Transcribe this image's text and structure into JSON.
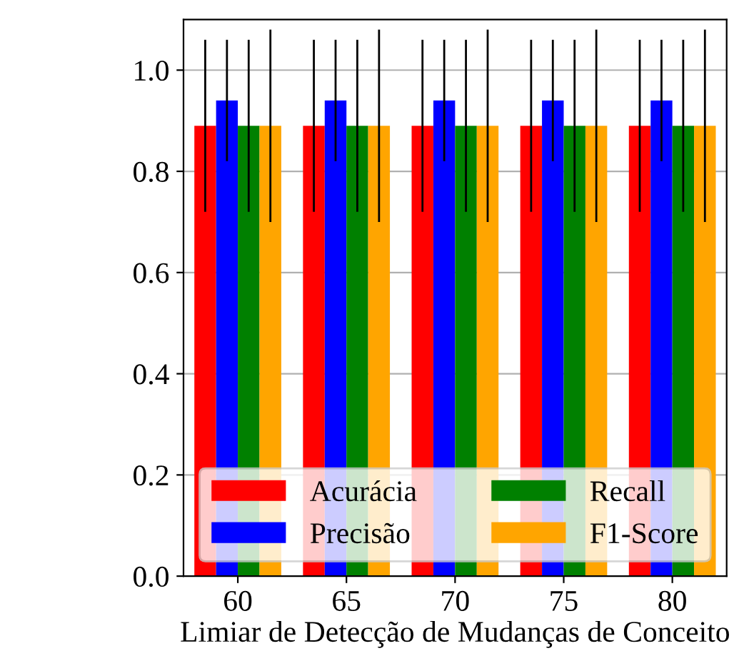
{
  "chart_data": {
    "type": "bar",
    "xlabel": "Limiar de Detecção de Mudanças de Conceito",
    "categories": [
      "60",
      "65",
      "70",
      "75",
      "80"
    ],
    "series": [
      {
        "name": "Acurácia",
        "color": "#ff0000",
        "values": [
          0.89,
          0.89,
          0.89,
          0.89,
          0.89
        ],
        "errors": [
          0.17,
          0.17,
          0.17,
          0.17,
          0.17
        ]
      },
      {
        "name": "Precisão",
        "color": "#0000ff",
        "values": [
          0.94,
          0.94,
          0.94,
          0.94,
          0.94
        ],
        "errors": [
          0.12,
          0.12,
          0.12,
          0.12,
          0.12
        ]
      },
      {
        "name": "Recall",
        "color": "#008000",
        "values": [
          0.89,
          0.89,
          0.89,
          0.89,
          0.89
        ],
        "errors": [
          0.17,
          0.17,
          0.17,
          0.17,
          0.17
        ]
      },
      {
        "name": "F1-Score",
        "color": "#ffa500",
        "values": [
          0.89,
          0.89,
          0.89,
          0.89,
          0.89
        ],
        "errors": [
          0.19,
          0.19,
          0.19,
          0.19,
          0.19
        ]
      }
    ],
    "ylim": [
      0,
      1.1
    ],
    "yticks": [
      {
        "value": 0,
        "label": "0.0"
      },
      {
        "value": 0.2,
        "label": "0.2"
      },
      {
        "value": 0.4,
        "label": "0.4"
      },
      {
        "value": 0.6,
        "label": "0.6"
      },
      {
        "value": 0.8,
        "label": "0.8"
      },
      {
        "value": 1.0,
        "label": "1.0"
      }
    ],
    "grid": "y",
    "legend": "bottom"
  }
}
